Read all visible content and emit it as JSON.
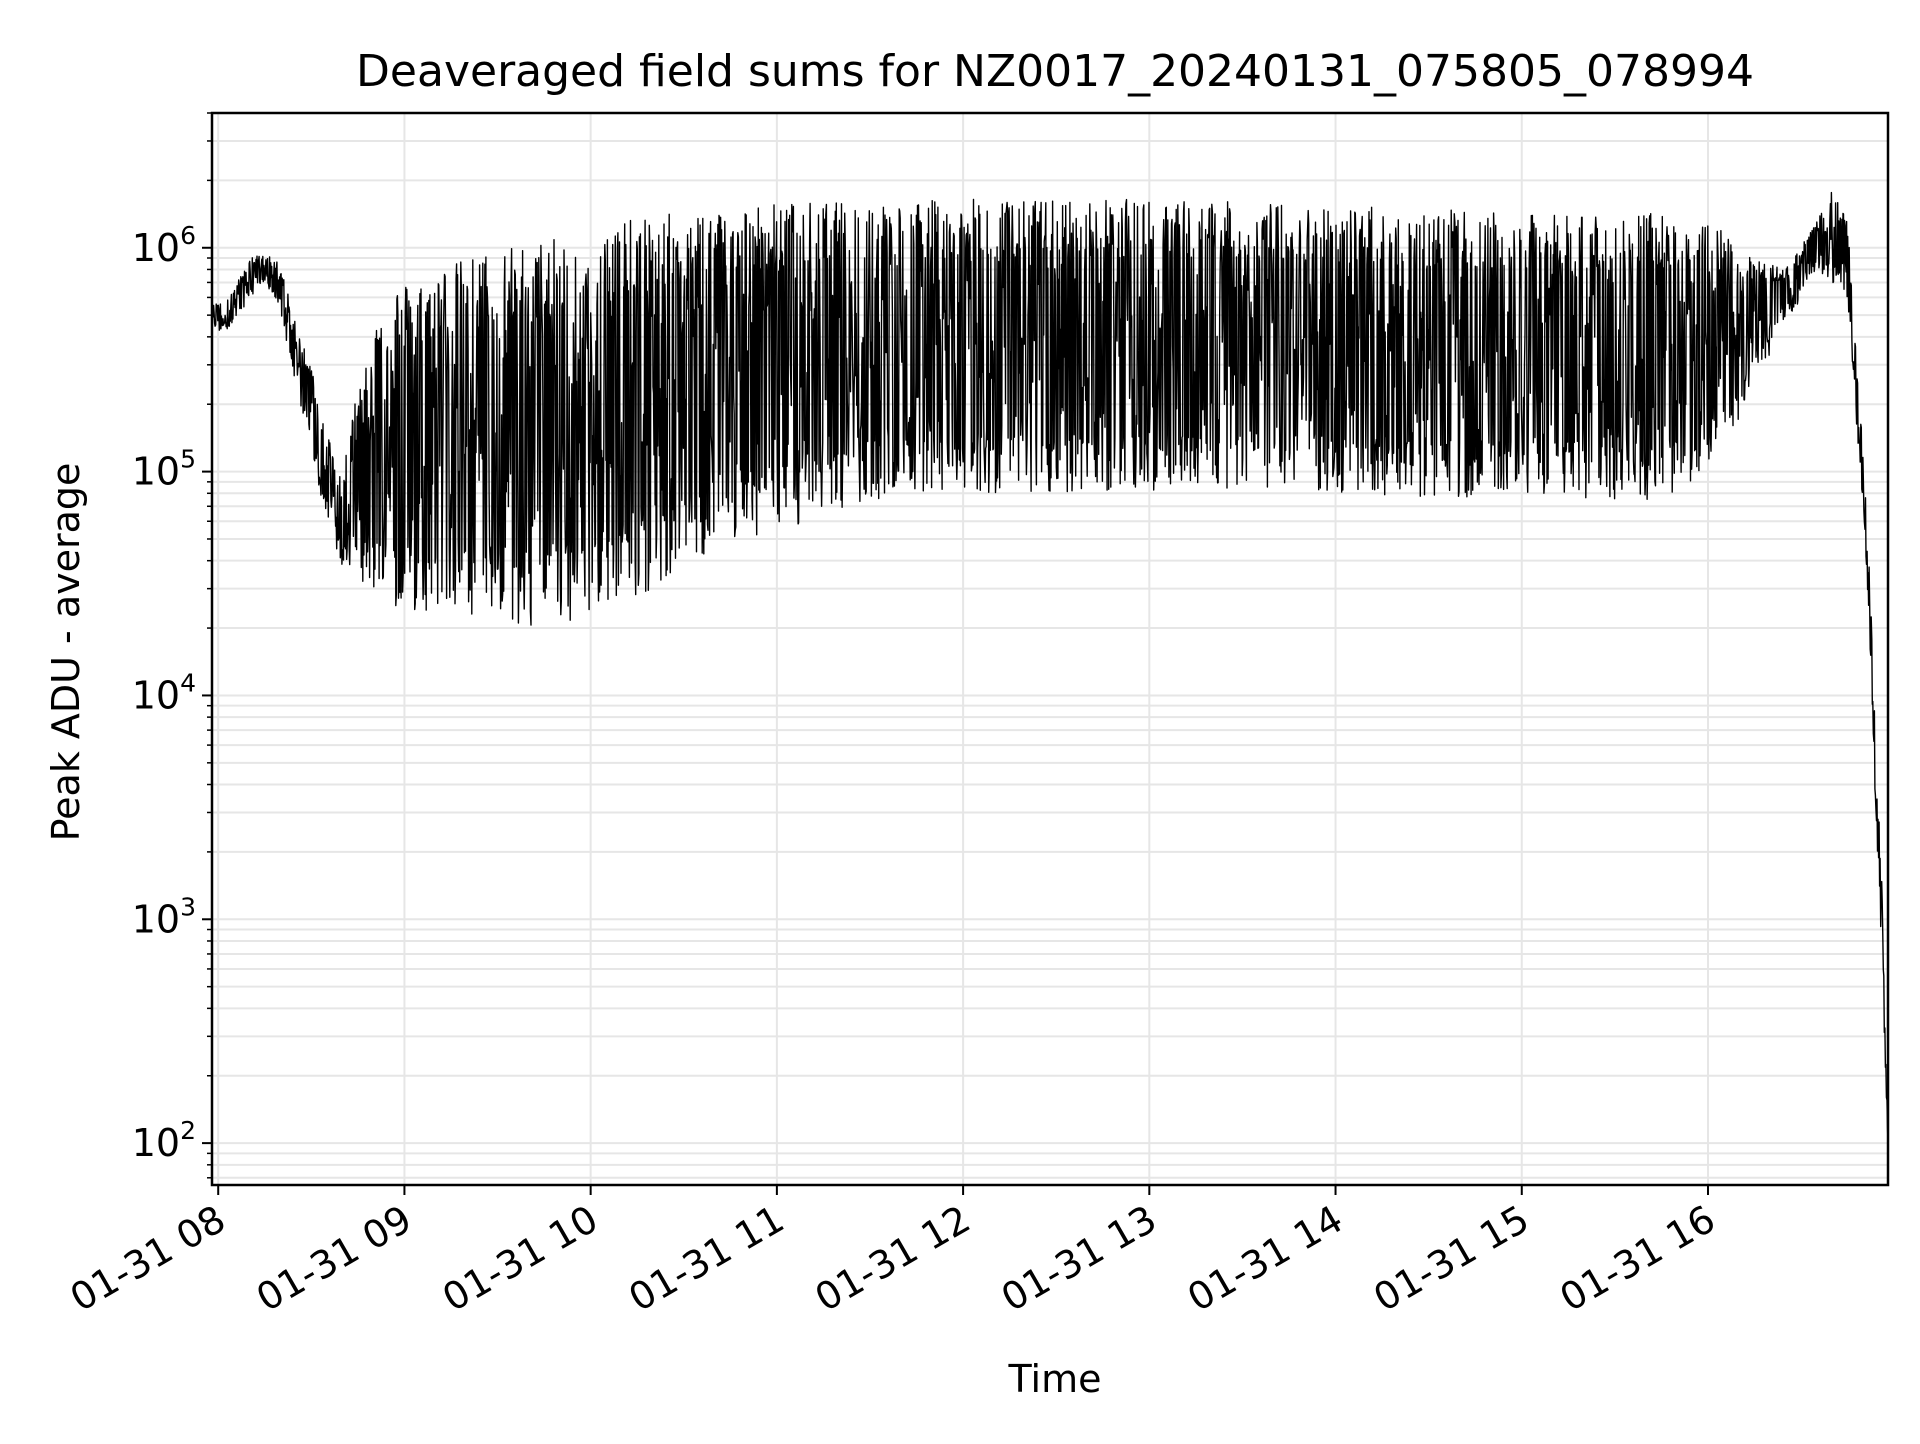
{
  "chart_data": {
    "type": "line",
    "title": "Deaveraged field sums for NZ0017_20240131_075805_078994",
    "xlabel": "Time",
    "ylabel": "Peak ADU - average",
    "yscale": "log",
    "ylim": [
      65,
      4000000
    ],
    "xlim": [
      "2024-01-31 07:58",
      "2024-01-31 16:58"
    ],
    "grid": true,
    "line_color": "#000000",
    "grid_color": "#e6e6e6",
    "x_tick_labels": [
      "01-31 08",
      "01-31 09",
      "01-31 10",
      "01-31 11",
      "01-31 12",
      "01-31 13",
      "01-31 14",
      "01-31 15",
      "01-31 16"
    ],
    "x_tick_values": [
      "2024-01-31 08:00",
      "2024-01-31 09:00",
      "2024-01-31 10:00",
      "2024-01-31 11:00",
      "2024-01-31 12:00",
      "2024-01-31 13:00",
      "2024-01-31 14:00",
      "2024-01-31 15:00",
      "2024-01-31 16:00"
    ],
    "y_ticks": [
      {
        "base": "10",
        "exp": "2",
        "value": 100
      },
      {
        "base": "10",
        "exp": "3",
        "value": 1000
      },
      {
        "base": "10",
        "exp": "4",
        "value": 10000
      },
      {
        "base": "10",
        "exp": "5",
        "value": 100000
      },
      {
        "base": "10",
        "exp": "6",
        "value": 1000000
      }
    ],
    "series": [
      {
        "x": [
          "2024-01-31 07:58",
          "2024-01-31 08:05",
          "2024-01-31 08:10",
          "2024-01-31 08:15",
          "2024-01-31 08:20",
          "2024-01-31 08:25",
          "2024-01-31 08:30",
          "2024-01-31 08:35",
          "2024-01-31 08:40",
          "2024-01-31 08:45",
          "2024-01-31 08:50",
          "2024-01-31 08:55",
          "2024-01-31 09:00",
          "2024-01-31 09:10",
          "2024-01-31 09:20",
          "2024-01-31 09:30",
          "2024-01-31 09:40",
          "2024-01-31 09:50",
          "2024-01-31 10:00",
          "2024-01-31 10:10",
          "2024-01-31 10:20",
          "2024-01-31 10:30",
          "2024-01-31 10:40",
          "2024-01-31 10:50",
          "2024-01-31 11:00",
          "2024-01-31 11:15",
          "2024-01-31 11:30",
          "2024-01-31 12:00",
          "2024-01-31 12:30",
          "2024-01-31 13:00",
          "2024-01-31 13:30",
          "2024-01-31 14:00",
          "2024-01-31 14:30",
          "2024-01-31 15:00",
          "2024-01-31 15:30",
          "2024-01-31 15:50",
          "2024-01-31 16:05",
          "2024-01-31 16:15",
          "2024-01-31 16:25",
          "2024-01-31 16:35",
          "2024-01-31 16:40",
          "2024-01-31 16:45",
          "2024-01-31 16:48",
          "2024-01-31 16:50",
          "2024-01-31 16:52",
          "2024-01-31 16:54",
          "2024-01-31 16:56",
          "2024-01-31 16:58"
        ],
        "low": [
          400000,
          450000,
          600000,
          700000,
          500000,
          250000,
          120000,
          60000,
          38000,
          32000,
          28000,
          25000,
          24000,
          23000,
          22000,
          21000,
          20000,
          21000,
          23000,
          26000,
          30000,
          38000,
          45000,
          50000,
          55000,
          60000,
          70000,
          80000,
          80000,
          80000,
          85000,
          80000,
          75000,
          80000,
          70000,
          80000,
          120000,
          250000,
          450000,
          800000,
          700000,
          600000,
          150000,
          70000,
          20000,
          3000,
          600,
          100
        ],
        "high": [
          550000,
          650000,
          900000,
          950000,
          850000,
          450000,
          300000,
          150000,
          100000,
          250000,
          450000,
          650000,
          700000,
          800000,
          900000,
          1000000,
          1050000,
          1100000,
          1200000,
          1300000,
          1400000,
          1450000,
          1500000,
          1550000,
          1600000,
          1600000,
          1600000,
          1650000,
          1650000,
          1650000,
          1600000,
          1550000,
          1500000,
          1400000,
          1450000,
          1400000,
          1200000,
          900000,
          800000,
          1300000,
          1800000,
          1300000,
          300000,
          120000,
          40000,
          6000,
          1500,
          100
        ]
      }
    ]
  }
}
